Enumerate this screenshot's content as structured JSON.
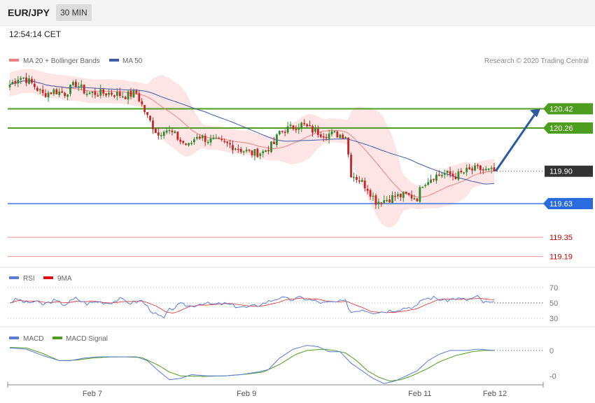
{
  "header": {
    "pair": "EUR/JPY",
    "interval": "30 MIN"
  },
  "time_label": "12:54:14 CET",
  "credit": "Research © 2020 Trading Central",
  "colors": {
    "ma20": "#f08080",
    "ma50": "#3c5ea8",
    "band_fill": "#fde2e2",
    "bull": "#2e8b2e",
    "bear": "#cc2222",
    "resistance": "#4d9e1e",
    "support": "#2a6be0",
    "weak_support": "#f0a0a0",
    "current": "#333333",
    "rsi": "#5a7bd8",
    "rsi_ma": "#dd1111",
    "macd": "#5a7bd8",
    "macd_signal": "#4d9e1e",
    "arrow": "#2c5aa0"
  },
  "chart_data": [
    {
      "type": "candlestick",
      "title": "",
      "legend": [
        {
          "name": "MA 20 + Bollinger Bands",
          "color": "#f08080"
        },
        {
          "name": "MA 50",
          "color": "#3c5ea8"
        }
      ],
      "x_ticks": [
        "Feb 7",
        "Feb 9",
        "Feb 11",
        "Feb 12"
      ],
      "ylim": [
        119.1,
        120.72
      ],
      "last_price": 119.9,
      "levels": [
        {
          "value": 120.42,
          "label": "120.42",
          "kind": "resistance"
        },
        {
          "value": 120.26,
          "label": "120.26",
          "kind": "resistance"
        },
        {
          "value": 119.9,
          "label": "119.90",
          "kind": "current"
        },
        {
          "value": 119.63,
          "label": "119.63",
          "kind": "support"
        },
        {
          "value": 119.35,
          "label": "119.35",
          "kind": "weak_support"
        },
        {
          "value": 119.19,
          "label": "119.19",
          "kind": "weak_support"
        }
      ],
      "forecast_arrow": {
        "from": 119.9,
        "to": 120.42
      },
      "anchors": [
        [
          0,
          120.62
        ],
        [
          3,
          120.68
        ],
        [
          5,
          120.68
        ],
        [
          8,
          120.63
        ],
        [
          12,
          120.54
        ],
        [
          16,
          120.57
        ],
        [
          20,
          120.55
        ],
        [
          24,
          120.63
        ],
        [
          28,
          120.55
        ],
        [
          33,
          120.55
        ],
        [
          37,
          120.55
        ],
        [
          42,
          120.53
        ],
        [
          46,
          120.55
        ],
        [
          50,
          120.35
        ],
        [
          54,
          120.2
        ],
        [
          56,
          120.26
        ],
        [
          60,
          120.2
        ],
        [
          62,
          120.15
        ],
        [
          65,
          120.11
        ],
        [
          68,
          120.2
        ],
        [
          72,
          120.16
        ],
        [
          76,
          120.14
        ],
        [
          80,
          120.12
        ],
        [
          84,
          120.08
        ],
        [
          88,
          120.05
        ],
        [
          92,
          120.06
        ],
        [
          96,
          120.13
        ],
        [
          98,
          120.23
        ],
        [
          102,
          120.26
        ],
        [
          106,
          120.29
        ],
        [
          110,
          120.24
        ],
        [
          114,
          120.21
        ],
        [
          118,
          120.21
        ],
        [
          122,
          120.2
        ],
        [
          124,
          119.88
        ],
        [
          127,
          119.83
        ],
        [
          130,
          119.76
        ],
        [
          133,
          119.65
        ],
        [
          136,
          119.66
        ],
        [
          140,
          119.69
        ],
        [
          144,
          119.7
        ],
        [
          148,
          119.68
        ],
        [
          150,
          119.8
        ],
        [
          154,
          119.86
        ],
        [
          158,
          119.88
        ],
        [
          162,
          119.86
        ],
        [
          166,
          119.9
        ],
        [
          170,
          119.92
        ],
        [
          174,
          119.9
        ],
        [
          176,
          119.9
        ]
      ]
    },
    {
      "type": "line",
      "title": "",
      "series": [
        {
          "name": "RSI",
          "color": "#5a7bd8"
        },
        {
          "name": "9MA",
          "color": "#dd1111"
        }
      ],
      "y_ticks": [
        70,
        50,
        30
      ],
      "ylim": [
        20,
        80
      ],
      "current": 50,
      "anchors": [
        [
          0,
          51
        ],
        [
          3,
          55
        ],
        [
          6,
          50
        ],
        [
          9,
          52
        ],
        [
          12,
          48
        ],
        [
          16,
          53
        ],
        [
          20,
          48
        ],
        [
          24,
          56
        ],
        [
          28,
          49
        ],
        [
          32,
          52
        ],
        [
          36,
          50
        ],
        [
          40,
          55
        ],
        [
          44,
          50
        ],
        [
          48,
          53
        ],
        [
          50,
          45
        ],
        [
          53,
          35
        ],
        [
          56,
          30
        ],
        [
          58,
          41
        ],
        [
          62,
          48
        ],
        [
          66,
          46
        ],
        [
          70,
          50
        ],
        [
          74,
          48
        ],
        [
          78,
          49
        ],
        [
          82,
          46
        ],
        [
          86,
          44
        ],
        [
          90,
          47
        ],
        [
          94,
          52
        ],
        [
          98,
          57
        ],
        [
          102,
          54
        ],
        [
          106,
          57
        ],
        [
          110,
          53
        ],
        [
          114,
          50
        ],
        [
          118,
          51
        ],
        [
          122,
          52
        ],
        [
          124,
          38
        ],
        [
          128,
          42
        ],
        [
          132,
          38
        ],
        [
          136,
          39
        ],
        [
          140,
          41
        ],
        [
          144,
          44
        ],
        [
          148,
          46
        ],
        [
          150,
          55
        ],
        [
          154,
          57
        ],
        [
          158,
          53
        ],
        [
          162,
          56
        ],
        [
          166,
          54
        ],
        [
          170,
          58
        ],
        [
          172,
          51
        ],
        [
          176,
          50
        ]
      ]
    },
    {
      "type": "line",
      "title": "",
      "series": [
        {
          "name": "MACD",
          "color": "#5a7bd8"
        },
        {
          "name": "MACD Signal",
          "color": "#4d9e1e"
        }
      ],
      "y_ticks": [
        0,
        -0.1
      ],
      "y_tick_labels": [
        "0",
        "-0"
      ],
      "ylim": [
        -0.135,
        0.03
      ],
      "current": 0.0,
      "macd_anchors": [
        [
          0,
          0.01
        ],
        [
          6,
          0.005
        ],
        [
          12,
          -0.02
        ],
        [
          18,
          -0.04
        ],
        [
          22,
          -0.04
        ],
        [
          27,
          -0.03
        ],
        [
          32,
          -0.025
        ],
        [
          40,
          -0.025
        ],
        [
          46,
          -0.025
        ],
        [
          50,
          -0.04
        ],
        [
          54,
          -0.08
        ],
        [
          58,
          -0.115
        ],
        [
          62,
          -0.11
        ],
        [
          66,
          -0.095
        ],
        [
          72,
          -0.1
        ],
        [
          78,
          -0.1
        ],
        [
          84,
          -0.095
        ],
        [
          90,
          -0.085
        ],
        [
          94,
          -0.075
        ],
        [
          98,
          -0.03
        ],
        [
          103,
          0.005
        ],
        [
          108,
          0.02
        ],
        [
          112,
          0.015
        ],
        [
          116,
          -0.005
        ],
        [
          120,
          -0.005
        ],
        [
          124,
          -0.05
        ],
        [
          128,
          -0.08
        ],
        [
          132,
          -0.11
        ],
        [
          136,
          -0.13
        ],
        [
          140,
          -0.12
        ],
        [
          144,
          -0.1
        ],
        [
          148,
          -0.08
        ],
        [
          152,
          -0.04
        ],
        [
          156,
          -0.015
        ],
        [
          160,
          0.0
        ],
        [
          166,
          0.0
        ],
        [
          170,
          0.005
        ],
        [
          176,
          0.0
        ]
      ],
      "signal_anchors": [
        [
          0,
          0.012
        ],
        [
          6,
          0.01
        ],
        [
          12,
          -0.012
        ],
        [
          18,
          -0.04
        ],
        [
          24,
          -0.038
        ],
        [
          30,
          -0.03
        ],
        [
          36,
          -0.026
        ],
        [
          42,
          -0.025
        ],
        [
          48,
          -0.028
        ],
        [
          54,
          -0.058
        ],
        [
          58,
          -0.085
        ],
        [
          62,
          -0.1
        ],
        [
          70,
          -0.102
        ],
        [
          78,
          -0.1
        ],
        [
          86,
          -0.093
        ],
        [
          92,
          -0.085
        ],
        [
          98,
          -0.055
        ],
        [
          104,
          -0.015
        ],
        [
          108,
          0.0
        ],
        [
          114,
          0.005
        ],
        [
          118,
          0.0
        ],
        [
          122,
          -0.01
        ],
        [
          126,
          -0.04
        ],
        [
          130,
          -0.08
        ],
        [
          134,
          -0.105
        ],
        [
          138,
          -0.12
        ],
        [
          142,
          -0.115
        ],
        [
          146,
          -0.1
        ],
        [
          152,
          -0.07
        ],
        [
          156,
          -0.045
        ],
        [
          162,
          -0.02
        ],
        [
          168,
          -0.005
        ],
        [
          172,
          0.0
        ],
        [
          176,
          0.0
        ]
      ]
    }
  ]
}
